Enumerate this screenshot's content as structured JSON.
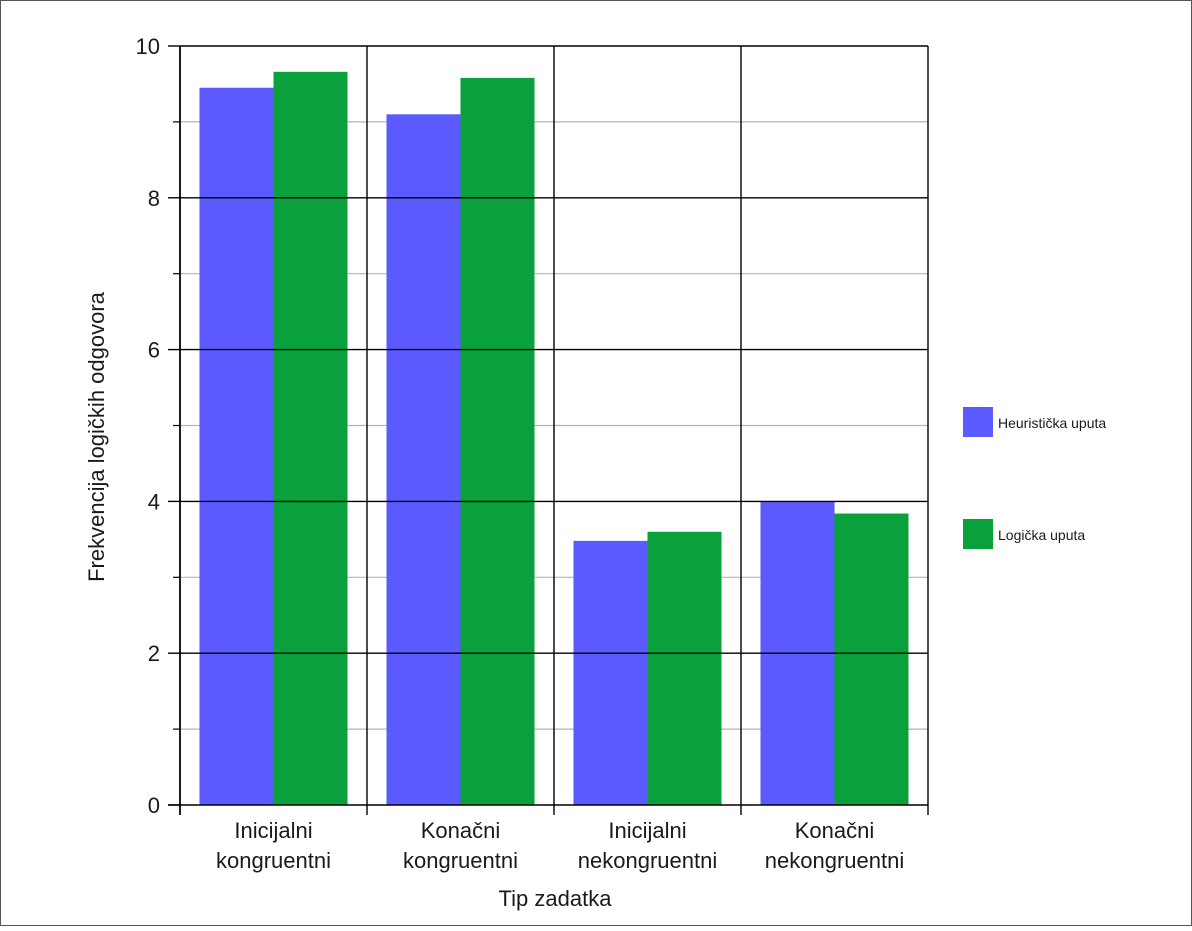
{
  "chart_data": {
    "type": "bar",
    "title": "",
    "xlabel": "Tip zadatka",
    "ylabel": "Frekvencija logičkih odgovora",
    "categories": [
      [
        "Inicijalni",
        "kongruentni"
      ],
      [
        "Konačni",
        "kongruentni"
      ],
      [
        "Inicijalni",
        "nekongruentni"
      ],
      [
        "Konačni",
        "nekongruentni"
      ]
    ],
    "series": [
      {
        "name": "Heuristička uputa",
        "color": "#5a5aff",
        "values": [
          9.45,
          9.1,
          3.48,
          4.0
        ]
      },
      {
        "name": "Logička uputa",
        "color": "#0aa03c",
        "values": [
          9.66,
          9.58,
          3.6,
          3.84
        ]
      }
    ],
    "ylim": [
      0,
      10
    ],
    "yticks": [
      0,
      2,
      4,
      6,
      8,
      10
    ],
    "grid": true,
    "legend_position": "right"
  }
}
